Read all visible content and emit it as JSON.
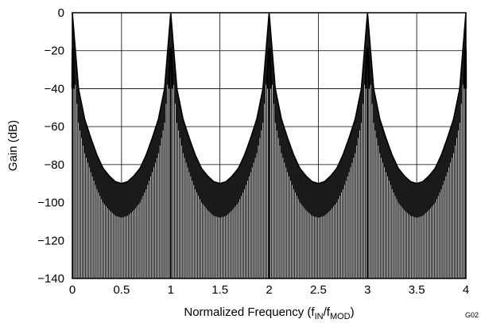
{
  "chart_data": {
    "type": "line",
    "xlabel_main": "Normalized Frequency (f",
    "xlabel_sub1": "IN",
    "xlabel_mid": "/f",
    "xlabel_sub2": "MOD",
    "xlabel_end": ")",
    "ylabel": "Gain (dB)",
    "figure_code": "G02",
    "xlim": [
      0,
      4
    ],
    "ylim": [
      -140,
      0
    ],
    "x_ticks": [
      0,
      0.5,
      1,
      1.5,
      2,
      2.5,
      3,
      3.5,
      4
    ],
    "x_tick_labels": [
      "0",
      "0.5",
      "1",
      "1.5",
      "2",
      "2.5",
      "3",
      "3.5",
      "4"
    ],
    "y_ticks": [
      0,
      -20,
      -40,
      -60,
      -80,
      -100,
      -120,
      -140
    ],
    "y_tick_labels": [
      "0",
      "−20",
      "−40",
      "−60",
      "−80",
      "−100",
      "−120",
      "−140"
    ],
    "grid": true,
    "series": [
      {
        "peaks_at": [
          0,
          1,
          2,
          3,
          4
        ],
        "peak_gain_db": 0,
        "envelope_points": [
          {
            "offset": 0.0,
            "gain": 0
          },
          {
            "offset": 0.0625,
            "gain": -40
          },
          {
            "offset": 0.125,
            "gain": -56
          },
          {
            "offset": 0.1875,
            "gain": -66
          },
          {
            "offset": 0.25,
            "gain": -75
          },
          {
            "offset": 0.3125,
            "gain": -82
          },
          {
            "offset": 0.375,
            "gain": -86
          },
          {
            "offset": 0.4375,
            "gain": -89
          },
          {
            "offset": 0.5,
            "gain": -90
          }
        ],
        "notch_floor_db": -140,
        "null_spacing": 0.015625
      }
    ],
    "line_color": "#000000",
    "grid_color": "#000000"
  }
}
